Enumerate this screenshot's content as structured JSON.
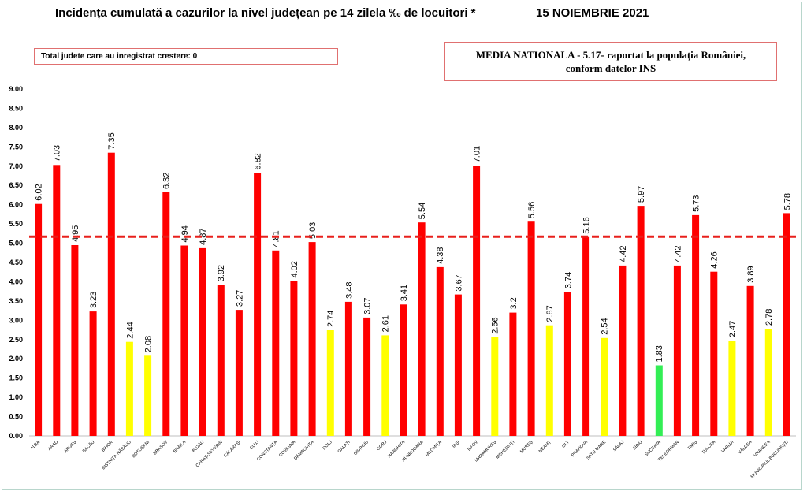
{
  "header": {
    "title": "Incidența cumulată a cazurilor la nivel județean pe 14 zilela ‰ de locuitori *",
    "date": "15 NOIEMBRIE 2021"
  },
  "info": {
    "left_box": "Total judete care au inregistrat crestere: 0",
    "national_line1": "MEDIA NATIONALA  - 5.17-  raportat la populația României,",
    "national_line2": "conform datelor INS"
  },
  "colors": {
    "red": "#ff0000",
    "yellow": "#ffff00",
    "green": "#33ee55",
    "reference_line": "#e8201c"
  },
  "chart_data": {
    "type": "bar",
    "ylim": [
      0,
      9
    ],
    "yticks": [
      "0.00",
      "0.50",
      "1.00",
      "1.50",
      "2.00",
      "2.50",
      "3.00",
      "3.50",
      "4.00",
      "4.50",
      "5.00",
      "5.50",
      "6.00",
      "6.50",
      "7.00",
      "7.50",
      "8.00",
      "8.50",
      "9.00"
    ],
    "reference_value": 5.17,
    "categories": [
      "ALBA",
      "ARAD",
      "ARGEȘ",
      "BACĂU",
      "BIHOR",
      "BISTRIȚA-NĂSĂUD",
      "BOTOȘANI",
      "BRAȘOV",
      "BRĂILA",
      "BUZĂU",
      "CARAȘ-SEVERIN",
      "CĂLĂRAȘI",
      "CLUJ",
      "CONSTANȚA",
      "COVASNA",
      "DÂMBOVIȚA",
      "DOLJ",
      "GALAȚI",
      "GIURGIU",
      "GORJ",
      "HARGHITA",
      "HUNEDOARA",
      "IALOMIȚA",
      "IAȘI",
      "ILFOV",
      "MARAMUREȘ",
      "MEHEDINȚI",
      "MUREȘ",
      "NEAMȚ",
      "OLT",
      "PRAHOVA",
      "SATU MARE",
      "SĂLAJ",
      "SIBIU",
      "SUCEAVA",
      "TELEORMAN",
      "TIMIȘ",
      "TULCEA",
      "VASLUI",
      "VÂLCEA",
      "VRANCEA",
      "MUNICIPIUL BUCUREȘTI"
    ],
    "values": [
      6.02,
      7.03,
      4.95,
      3.23,
      7.35,
      2.44,
      2.08,
      6.32,
      4.94,
      4.87,
      3.92,
      3.27,
      6.82,
      4.81,
      4.02,
      5.03,
      2.74,
      3.48,
      3.07,
      2.61,
      3.41,
      5.54,
      4.38,
      3.67,
      7.01,
      2.56,
      3.2,
      5.56,
      2.87,
      3.74,
      5.16,
      2.54,
      4.42,
      5.97,
      1.83,
      4.42,
      5.73,
      4.26,
      2.47,
      3.89,
      2.78,
      5.78
    ],
    "value_labels": [
      "6.02",
      "7.03",
      "4.95",
      "3.23",
      "7.35",
      "2.44",
      "2.08",
      "6.32",
      "4.94",
      "4.87",
      "3.92",
      "3.27",
      "6.82",
      "4.81",
      "4.02",
      "5.03",
      "2.74",
      "3.48",
      "3.07",
      "2.61",
      "3.41",
      "5.54",
      "4.38",
      "3.67",
      "7.01",
      "2.56",
      "3.2",
      "5.56",
      "2.87",
      "3.74",
      "5.16",
      "2.54",
      "4.42",
      "5.97",
      "1.83",
      "4.42",
      "5.73",
      "4.26",
      "2.47",
      "3.89",
      "2.78",
      "5.78"
    ],
    "bar_colors": [
      "red",
      "red",
      "red",
      "red",
      "red",
      "yellow",
      "yellow",
      "red",
      "red",
      "red",
      "red",
      "red",
      "red",
      "red",
      "red",
      "red",
      "yellow",
      "red",
      "red",
      "yellow",
      "red",
      "red",
      "red",
      "red",
      "red",
      "yellow",
      "red",
      "red",
      "yellow",
      "red",
      "red",
      "yellow",
      "red",
      "red",
      "green",
      "red",
      "red",
      "red",
      "yellow",
      "red",
      "yellow",
      "red"
    ]
  }
}
